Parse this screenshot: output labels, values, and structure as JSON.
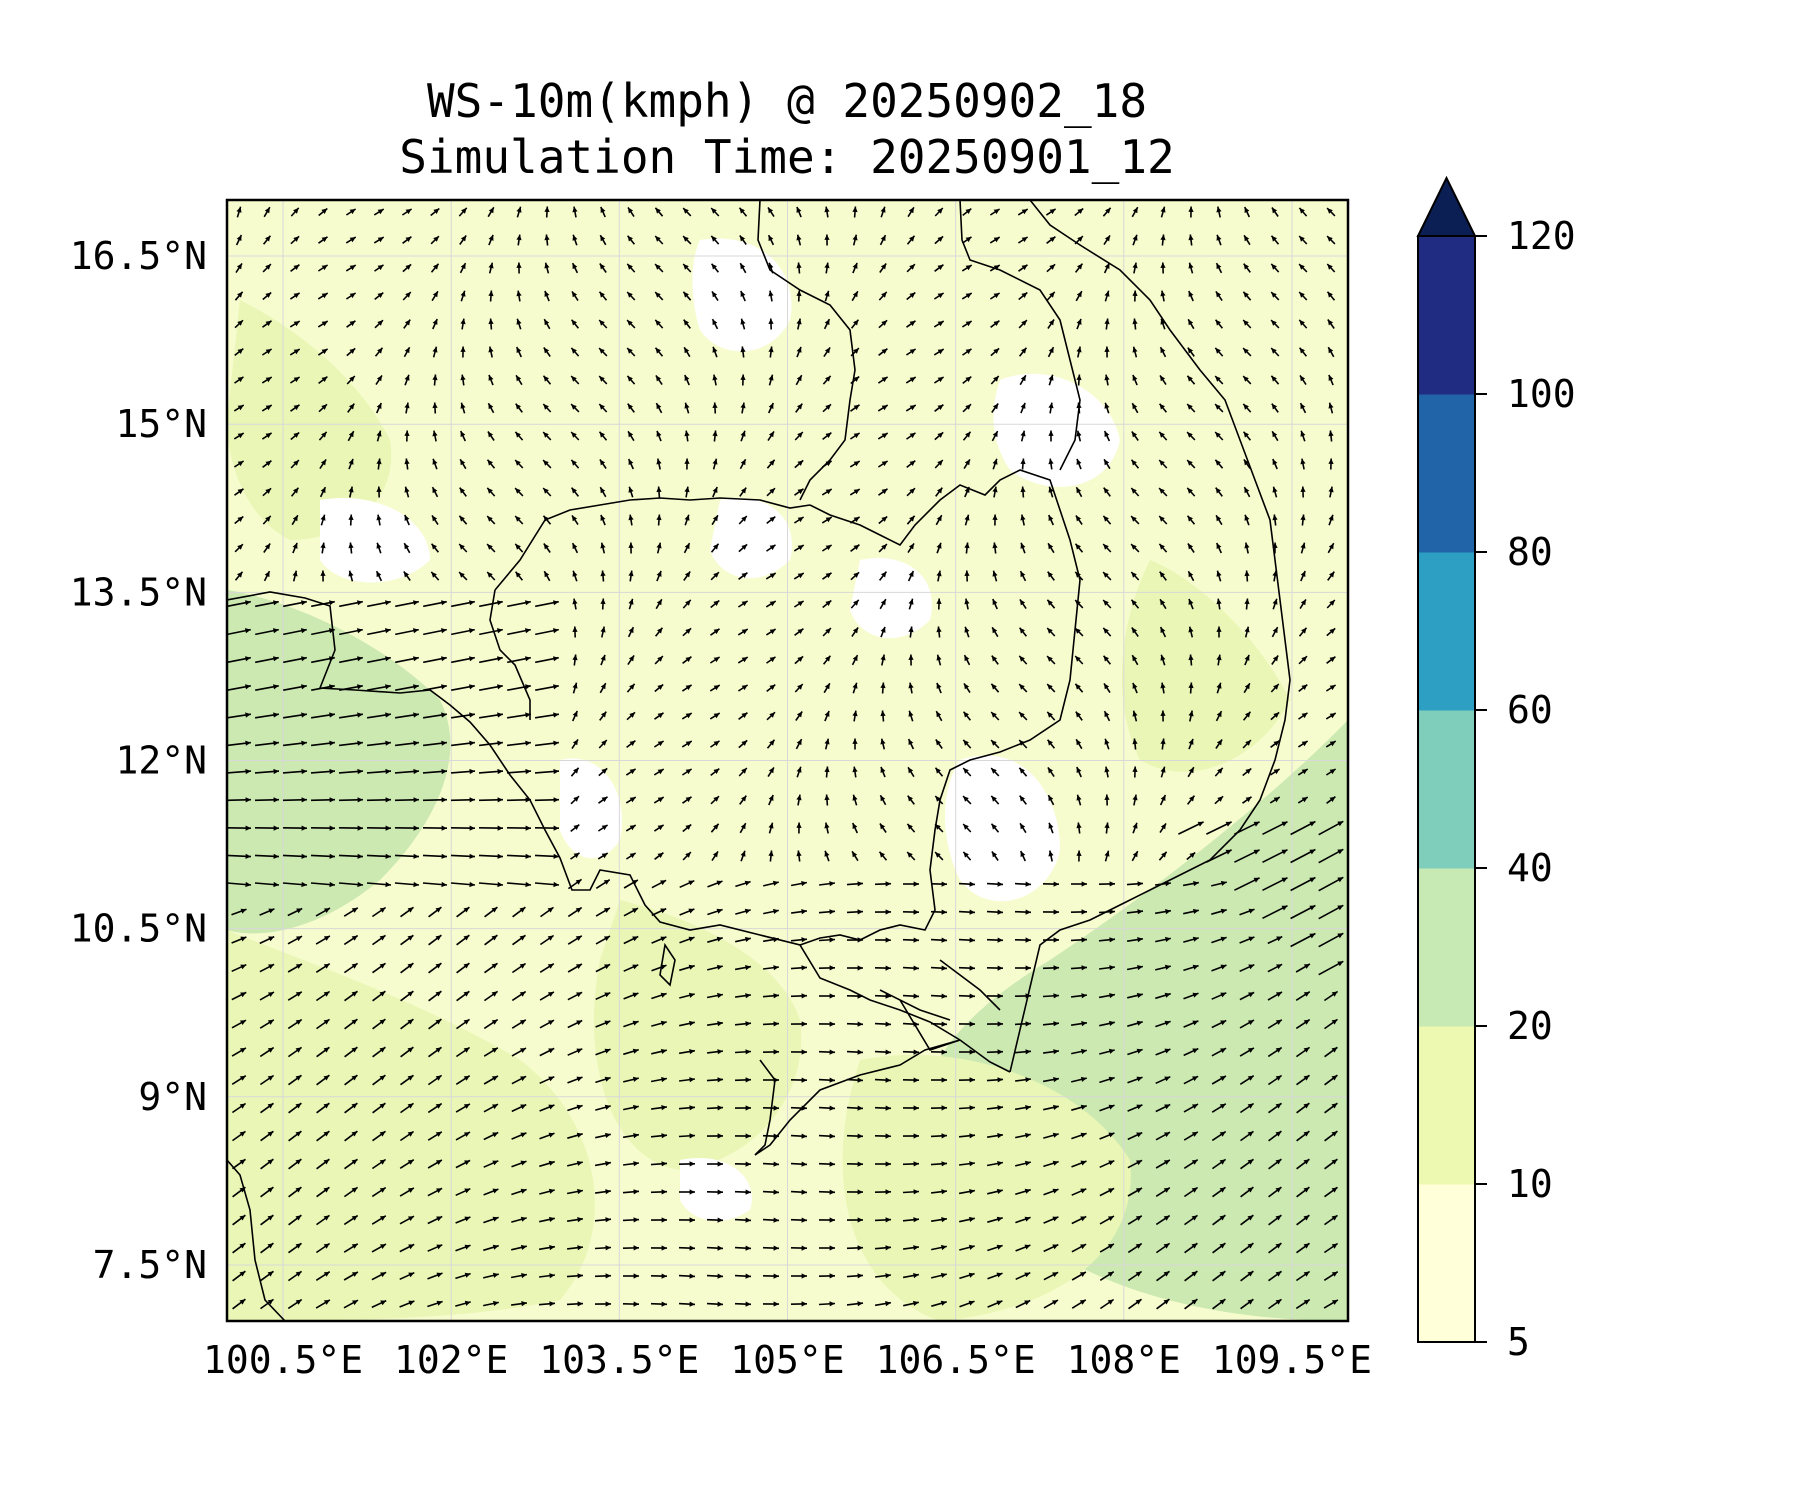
{
  "title": {
    "line1": "WS-10m(kmph) @ 20250902_18",
    "line2": "Simulation Time: 20250901_12"
  },
  "map": {
    "lon_range": [
      100.0,
      110.0
    ],
    "lat_range": [
      7.0,
      17.0
    ],
    "x_ticks": [
      {
        "value": 100.5,
        "label": "100.5°E"
      },
      {
        "value": 102.0,
        "label": "102°E"
      },
      {
        "value": 103.5,
        "label": "103.5°E"
      },
      {
        "value": 105.0,
        "label": "105°E"
      },
      {
        "value": 106.5,
        "label": "106.5°E"
      },
      {
        "value": 108.0,
        "label": "108°E"
      },
      {
        "value": 109.5,
        "label": "109.5°E"
      }
    ],
    "y_ticks": [
      {
        "value": 16.5,
        "label": "16.5°N"
      },
      {
        "value": 15.0,
        "label": "15°N"
      },
      {
        "value": 13.5,
        "label": "13.5°N"
      },
      {
        "value": 12.0,
        "label": "12°N"
      },
      {
        "value": 10.5,
        "label": "10.5°N"
      },
      {
        "value": 9.0,
        "label": "9°N"
      },
      {
        "value": 7.5,
        "label": "7.5°N"
      }
    ],
    "gridlines": true,
    "field": "wind speed at 10 m (km/h), filled contours with wind vectors"
  },
  "colorbar": {
    "extend": "max",
    "levels": [
      {
        "value": 5,
        "label": "5"
      },
      {
        "value": 10,
        "label": "10"
      },
      {
        "value": 20,
        "label": "20"
      },
      {
        "value": 40,
        "label": "40"
      },
      {
        "value": 60,
        "label": "60"
      },
      {
        "value": 80,
        "label": "80"
      },
      {
        "value": 100,
        "label": "100"
      },
      {
        "value": 120,
        "label": "120"
      }
    ],
    "colors": [
      "#ffffd9",
      "#edf8b1",
      "#c7e9b4",
      "#7fcdbb",
      "#2c9fc2",
      "#2165a8",
      "#1f2c82"
    ],
    "extend_color": "#0c1f55"
  },
  "colors": {
    "calm": "#ffffff",
    "low": "#f7fcce",
    "mid": "#eaf6b6",
    "high": "#cbe9b1",
    "arrow": "#000000",
    "coast": "#000000"
  }
}
